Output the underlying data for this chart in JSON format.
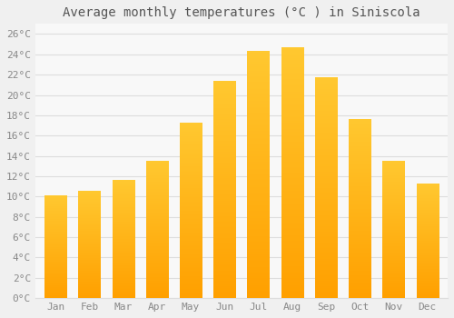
{
  "title": "Average monthly temperatures (°C ) in Siniscola",
  "months": [
    "Jan",
    "Feb",
    "Mar",
    "Apr",
    "May",
    "Jun",
    "Jul",
    "Aug",
    "Sep",
    "Oct",
    "Nov",
    "Dec"
  ],
  "values": [
    10.1,
    10.5,
    11.6,
    13.5,
    17.2,
    21.3,
    24.3,
    24.6,
    21.7,
    17.6,
    13.5,
    11.2
  ],
  "bar_color_top": "#FFC830",
  "bar_color_bottom": "#FFA000",
  "background_color": "#F0F0F0",
  "plot_bg_color": "#F8F8F8",
  "grid_color": "#DDDDDD",
  "ylim": [
    0,
    27
  ],
  "yticks": [
    0,
    2,
    4,
    6,
    8,
    10,
    12,
    14,
    16,
    18,
    20,
    22,
    24,
    26
  ],
  "title_fontsize": 10,
  "tick_fontsize": 8,
  "title_color": "#555555",
  "tick_color": "#888888"
}
